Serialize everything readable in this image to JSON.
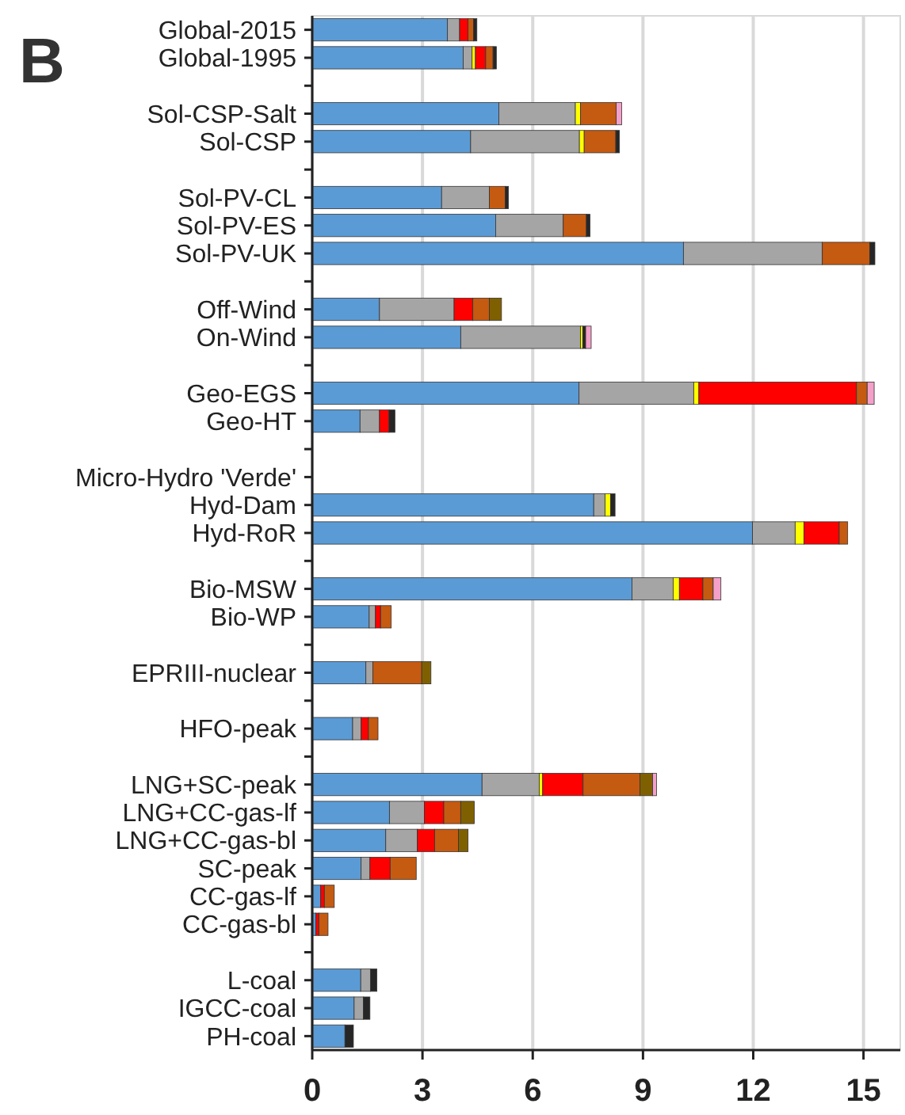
{
  "chart_data": {
    "type": "bar",
    "orientation": "horizontal",
    "stacked": true,
    "title": "B",
    "grid": "x",
    "categories": [
      "Global-2015",
      "Global-1995",
      null,
      "Sol-CSP-Salt",
      "Sol-CSP",
      null,
      "Sol-PV-CL",
      "Sol-PV-ES",
      "Sol-PV-UK",
      null,
      "Off-Wind",
      "On-Wind",
      null,
      "Geo-EGS",
      "Geo-HT",
      null,
      "Micro-Hydro 'Verde'",
      "Hyd-Dam",
      "Hyd-RoR",
      null,
      "Bio-MSW",
      "Bio-WP",
      null,
      "EPRIII-nuclear",
      null,
      "HFO-peak",
      null,
      "LNG+SC-peak",
      "LNG+CC-gas-lf",
      "LNG+CC-gas-bl",
      "SC-peak",
      "CC-gas-lf",
      "CC-gas-bl",
      null,
      "L-coal",
      "IGCC-coal",
      "PH-coal"
    ],
    "xlim": [
      0,
      16
    ],
    "xticks": [
      0,
      3,
      6,
      9,
      12,
      15
    ],
    "series": [
      {
        "color": "#5b9bd5",
        "values": [
          3.68,
          4.11,
          null,
          5.08,
          4.31,
          null,
          3.52,
          4.99,
          10.1,
          null,
          1.83,
          4.04,
          null,
          7.26,
          1.3,
          null,
          null,
          7.66,
          11.98,
          null,
          8.7,
          1.55,
          null,
          1.46,
          null,
          1.1,
          null,
          4.62,
          2.1,
          2.0,
          1.33,
          0.23,
          0.1,
          null,
          1.32,
          1.14,
          0.89
        ]
      },
      {
        "color": "#a5a5a5",
        "values": [
          0.33,
          0.24,
          null,
          2.08,
          2.96,
          null,
          1.3,
          1.84,
          3.78,
          null,
          2.03,
          3.26,
          null,
          3.12,
          0.53,
          null,
          null,
          0.31,
          1.16,
          null,
          1.12,
          0.17,
          null,
          0.19,
          null,
          0.23,
          null,
          1.56,
          0.95,
          0.86,
          0.24,
          null,
          null,
          null,
          0.27,
          0.25,
          null
        ]
      },
      {
        "color": "#ffff00",
        "values": [
          null,
          0.09,
          null,
          0.14,
          0.13,
          null,
          null,
          null,
          null,
          null,
          null,
          0.06,
          null,
          0.14,
          null,
          null,
          null,
          0.15,
          0.24,
          null,
          0.17,
          null,
          null,
          null,
          null,
          null,
          null,
          0.09,
          null,
          null,
          null,
          null,
          null,
          null,
          null,
          null,
          null
        ]
      },
      {
        "color": "#ff0000",
        "values": [
          0.23,
          0.28,
          null,
          null,
          null,
          null,
          null,
          null,
          null,
          null,
          0.51,
          null,
          null,
          4.29,
          0.26,
          null,
          null,
          null,
          0.96,
          null,
          0.64,
          0.14,
          null,
          null,
          null,
          0.2,
          null,
          1.1,
          0.53,
          0.47,
          0.55,
          0.1,
          0.08,
          null,
          null,
          null,
          null
        ]
      },
      {
        "color": "#c55a11",
        "values": [
          0.15,
          0.2,
          null,
          0.97,
          0.86,
          null,
          0.43,
          0.63,
          1.29,
          null,
          0.45,
          null,
          null,
          0.29,
          null,
          null,
          null,
          null,
          0.23,
          null,
          0.28,
          0.29,
          null,
          1.33,
          null,
          0.26,
          null,
          1.55,
          0.46,
          0.65,
          0.71,
          0.27,
          0.25,
          null,
          null,
          null,
          null
        ]
      },
      {
        "color": "#7f6000",
        "values": [
          null,
          null,
          null,
          null,
          null,
          null,
          null,
          null,
          null,
          null,
          0.33,
          null,
          null,
          null,
          null,
          null,
          null,
          null,
          null,
          null,
          null,
          null,
          null,
          0.25,
          null,
          null,
          null,
          0.34,
          0.37,
          0.26,
          null,
          null,
          null,
          null,
          null,
          null,
          null
        ]
      },
      {
        "color": "#262626",
        "values": [
          0.09,
          0.09,
          null,
          null,
          0.1,
          null,
          0.09,
          0.1,
          0.14,
          null,
          null,
          0.08,
          null,
          null,
          0.16,
          null,
          null,
          0.12,
          null,
          null,
          null,
          null,
          null,
          null,
          null,
          null,
          null,
          null,
          null,
          null,
          null,
          null,
          null,
          null,
          0.17,
          0.18,
          0.23
        ]
      },
      {
        "color": "#f4a0c8",
        "values": [
          null,
          null,
          null,
          0.15,
          null,
          null,
          null,
          null,
          null,
          null,
          null,
          0.15,
          null,
          0.19,
          null,
          null,
          null,
          null,
          null,
          null,
          0.21,
          null,
          null,
          null,
          null,
          null,
          null,
          0.11,
          null,
          null,
          null,
          null,
          null,
          null,
          null,
          null,
          null
        ]
      }
    ]
  }
}
